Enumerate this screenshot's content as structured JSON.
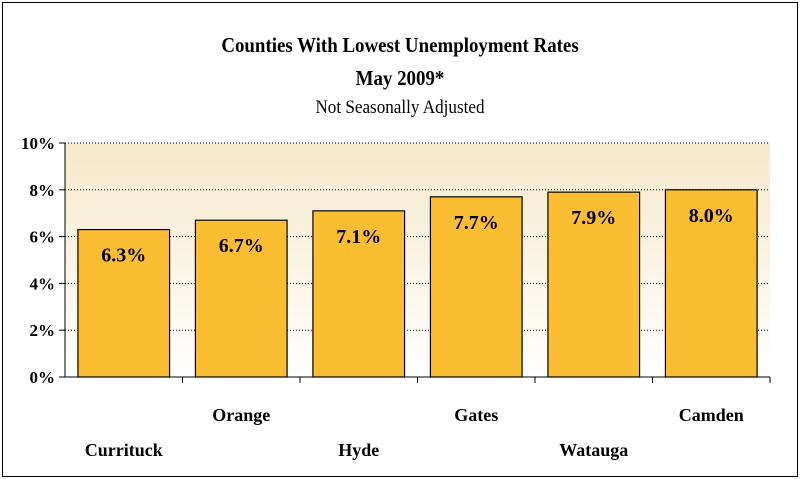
{
  "chart_data": {
    "type": "bar",
    "title": "Counties With Lowest Unemployment Rates",
    "subtitle": "May 2009*",
    "note": "Not Seasonally Adjusted",
    "categories": [
      "Currituck",
      "Orange",
      "Hyde",
      "Gates",
      "Watauga",
      "Camden"
    ],
    "values": [
      6.3,
      6.7,
      7.1,
      7.7,
      7.9,
      8.0
    ],
    "data_labels": [
      "6.3%",
      "6.7%",
      "7.1%",
      "7.7%",
      "7.9%",
      "8.0%"
    ],
    "yticks": [
      "0%",
      "2%",
      "4%",
      "6%",
      "8%",
      "10%"
    ],
    "ylim": [
      0,
      10
    ],
    "xlabel": "",
    "ylabel": "",
    "grid": true,
    "colors": {
      "bar": "#FBBE32",
      "bar_stroke": "#000000",
      "plot_bg_top": "#F6E9CB",
      "plot_bg_bottom": "#FFFFFF",
      "grid": "#000000"
    }
  }
}
